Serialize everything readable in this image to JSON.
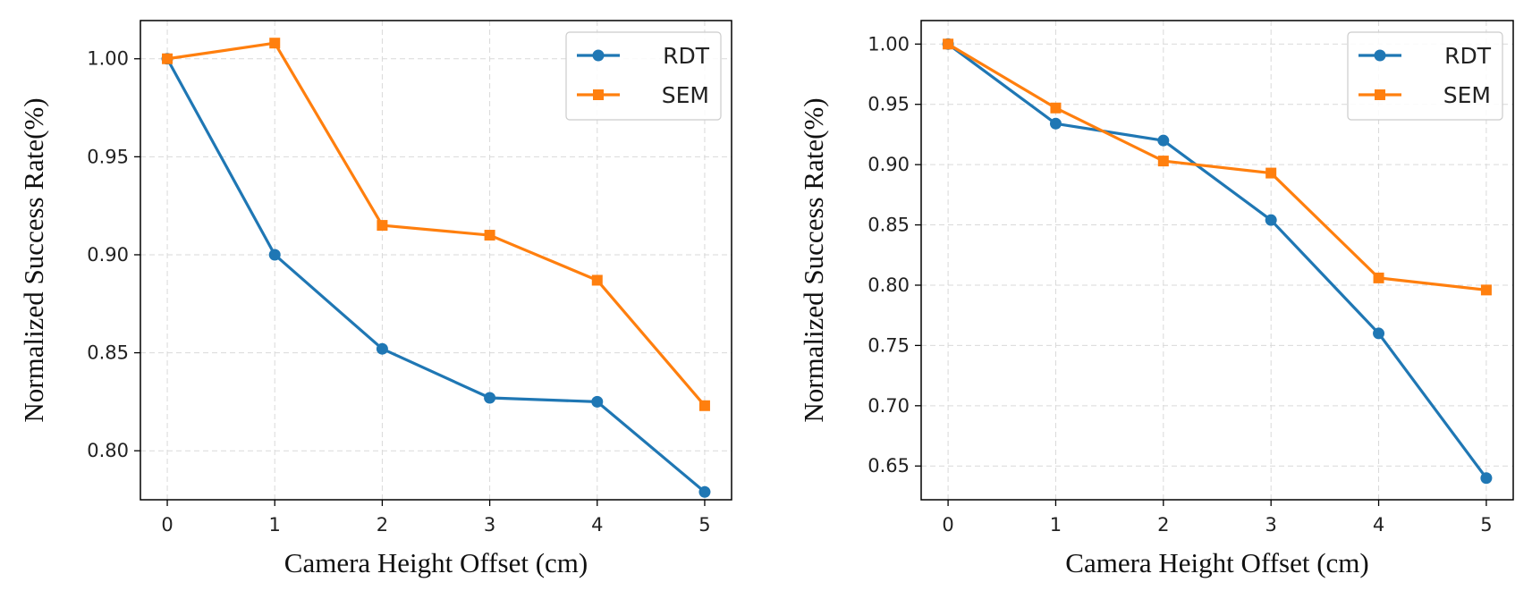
{
  "chart_data": [
    {
      "type": "line",
      "title": "",
      "xlabel": "Camera Height Offset (cm)",
      "ylabel": "Normalized Success Rate(%)",
      "x": [
        0,
        1,
        2,
        3,
        4,
        5
      ],
      "xlim": [
        -0.25,
        5.25
      ],
      "ylim": [
        0.775,
        1.0195
      ],
      "xticks": [
        "0",
        "1",
        "2",
        "3",
        "4",
        "5"
      ],
      "yticks": [
        "0.80",
        "0.85",
        "0.90",
        "0.95",
        "1.00"
      ],
      "ytick_values": [
        0.8,
        0.85,
        0.9,
        0.95,
        1.0
      ],
      "grid": true,
      "legend_position": "top-right",
      "series": [
        {
          "name": "RDT",
          "color": "#1f77b4",
          "marker": "circle",
          "values": [
            1.0,
            0.9,
            0.852,
            0.827,
            0.825,
            0.779
          ]
        },
        {
          "name": "SEM",
          "color": "#ff7f0e",
          "marker": "square",
          "values": [
            1.0,
            1.008,
            0.915,
            0.91,
            0.887,
            0.823
          ]
        }
      ]
    },
    {
      "type": "line",
      "title": "",
      "xlabel": "Camera Height Offset (cm)",
      "ylabel": "Normalized Success Rate(%)",
      "x": [
        0,
        1,
        2,
        3,
        4,
        5
      ],
      "xlim": [
        -0.25,
        5.25
      ],
      "ylim": [
        0.622,
        1.0195
      ],
      "xticks": [
        "0",
        "1",
        "2",
        "3",
        "4",
        "5"
      ],
      "yticks": [
        "0.65",
        "0.70",
        "0.75",
        "0.80",
        "0.85",
        "0.90",
        "0.95",
        "1.00"
      ],
      "ytick_values": [
        0.65,
        0.7,
        0.75,
        0.8,
        0.85,
        0.9,
        0.95,
        1.0
      ],
      "grid": true,
      "legend_position": "top-right",
      "series": [
        {
          "name": "RDT",
          "color": "#1f77b4",
          "marker": "circle",
          "values": [
            1.0,
            0.934,
            0.92,
            0.854,
            0.76,
            0.64
          ]
        },
        {
          "name": "SEM",
          "color": "#ff7f0e",
          "marker": "square",
          "values": [
            1.0,
            0.947,
            0.903,
            0.893,
            0.806,
            0.796
          ]
        }
      ]
    }
  ]
}
